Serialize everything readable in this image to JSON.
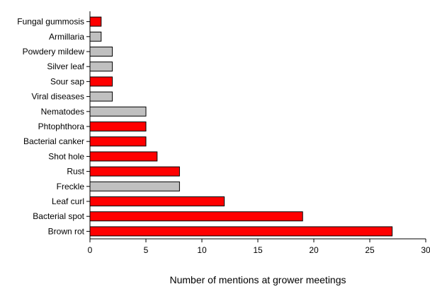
{
  "chart_data": {
    "type": "bar",
    "orientation": "horizontal",
    "categories": [
      "Fungal gummosis",
      "Armillaria",
      "Powdery mildew",
      "Silver leaf",
      "Sour sap",
      "Viral diseases",
      "Nematodes",
      "Phtophthora",
      "Bacterial canker",
      "Shot hole",
      "Rust",
      "Freckle",
      "Leaf curl",
      "Bacterial spot",
      "Brown rot"
    ],
    "values": [
      1,
      1,
      2,
      2,
      2,
      2,
      5,
      5,
      5,
      6,
      8,
      8,
      12,
      19,
      27
    ],
    "bar_colors": [
      "#ff0000",
      "#c0c0c0",
      "#c0c0c0",
      "#c0c0c0",
      "#ff0000",
      "#c0c0c0",
      "#c0c0c0",
      "#ff0000",
      "#ff0000",
      "#ff0000",
      "#ff0000",
      "#c0c0c0",
      "#ff0000",
      "#ff0000",
      "#ff0000"
    ],
    "title": "",
    "xlabel": "Number of mentions at grower meetings",
    "ylabel": "",
    "xlim": [
      0,
      30
    ],
    "xticks": [
      0,
      5,
      10,
      15,
      20,
      25,
      30
    ],
    "grid": false,
    "legend": "none"
  }
}
